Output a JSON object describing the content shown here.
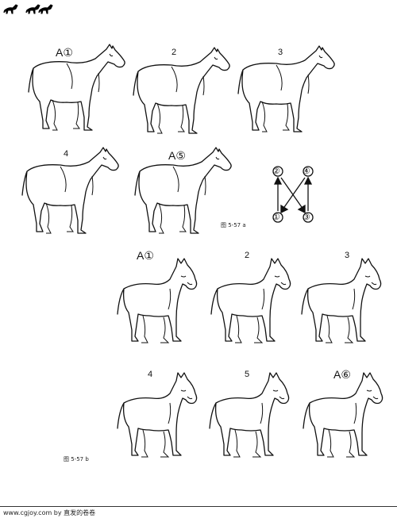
{
  "sheet": {
    "row1": [
      "A①",
      "2",
      "3"
    ],
    "row2": [
      "4",
      "A⑤"
    ],
    "caption_a": "图 5-57  a",
    "diagram": [
      "②",
      "④",
      "①",
      "③"
    ],
    "row3": [
      "A①",
      "2",
      "3"
    ],
    "row4": [
      "4",
      "5",
      "A⑥"
    ],
    "caption_b": "图 5-57  b"
  },
  "footer": {
    "text": "www.cgjoy.com by 直发的卷卷"
  }
}
